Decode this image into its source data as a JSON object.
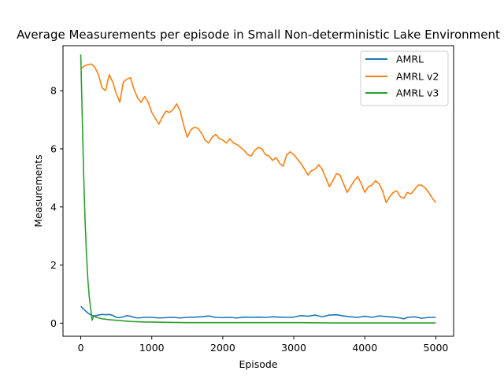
{
  "chart_data": {
    "type": "line",
    "title": "Average Measurements per episode in Small Non-deterministic Lake Environment",
    "xlabel": "Episode",
    "ylabel": "Measurements",
    "xlim": [
      -250,
      5250
    ],
    "ylim": [
      -0.45,
      9.55
    ],
    "xticks": [
      0,
      1000,
      2000,
      3000,
      4000,
      5000
    ],
    "xtick_labels": [
      "0",
      "1000",
      "2000",
      "3000",
      "4000",
      "5000"
    ],
    "yticks": [
      0,
      2,
      4,
      6,
      8
    ],
    "ytick_labels": [
      "0",
      "2",
      "4",
      "6",
      "8"
    ],
    "grid": false,
    "legend_position": "top-right",
    "series": [
      {
        "name": "AMRL",
        "color": "#1f77b4",
        "x": [
          0,
          50,
          100,
          150,
          200,
          250,
          300,
          350,
          400,
          450,
          500,
          550,
          600,
          650,
          700,
          750,
          800,
          900,
          1000,
          1100,
          1200,
          1300,
          1400,
          1500,
          1600,
          1700,
          1800,
          1900,
          2000,
          2100,
          2200,
          2300,
          2400,
          2500,
          2600,
          2700,
          2800,
          2900,
          3000,
          3100,
          3200,
          3300,
          3400,
          3500,
          3600,
          3700,
          3800,
          3900,
          4000,
          4100,
          4200,
          4300,
          4400,
          4500,
          4550,
          4600,
          4700,
          4800,
          4900,
          5000
        ],
        "y": [
          0.58,
          0.46,
          0.35,
          0.27,
          0.25,
          0.28,
          0.3,
          0.29,
          0.3,
          0.27,
          0.2,
          0.19,
          0.22,
          0.26,
          0.24,
          0.2,
          0.18,
          0.2,
          0.2,
          0.18,
          0.19,
          0.2,
          0.18,
          0.2,
          0.21,
          0.22,
          0.25,
          0.2,
          0.19,
          0.2,
          0.18,
          0.21,
          0.2,
          0.21,
          0.2,
          0.22,
          0.21,
          0.2,
          0.21,
          0.26,
          0.24,
          0.28,
          0.22,
          0.28,
          0.29,
          0.25,
          0.22,
          0.2,
          0.24,
          0.2,
          0.25,
          0.23,
          0.21,
          0.18,
          0.15,
          0.2,
          0.22,
          0.17,
          0.2,
          0.2
        ]
      },
      {
        "name": "AMRL v2",
        "color": "#ff7f0e",
        "x": [
          0,
          50,
          100,
          150,
          200,
          250,
          300,
          350,
          400,
          450,
          500,
          550,
          600,
          650,
          700,
          750,
          800,
          850,
          900,
          950,
          1000,
          1050,
          1100,
          1150,
          1200,
          1250,
          1300,
          1350,
          1400,
          1450,
          1500,
          1550,
          1600,
          1650,
          1700,
          1750,
          1800,
          1850,
          1900,
          1950,
          2000,
          2050,
          2100,
          2150,
          2200,
          2250,
          2300,
          2350,
          2400,
          2450,
          2500,
          2550,
          2600,
          2650,
          2700,
          2750,
          2800,
          2850,
          2900,
          2950,
          3000,
          3050,
          3100,
          3150,
          3200,
          3250,
          3300,
          3350,
          3400,
          3450,
          3500,
          3550,
          3600,
          3650,
          3700,
          3750,
          3800,
          3850,
          3900,
          3950,
          4000,
          4050,
          4100,
          4150,
          4200,
          4250,
          4300,
          4350,
          4400,
          4450,
          4500,
          4550,
          4600,
          4650,
          4700,
          4750,
          4800,
          4850,
          4900,
          4950,
          5000
        ],
        "y": [
          8.75,
          8.85,
          8.9,
          8.92,
          8.8,
          8.55,
          8.1,
          8.0,
          8.55,
          8.3,
          7.9,
          7.6,
          8.3,
          8.4,
          8.45,
          8.05,
          7.75,
          7.6,
          7.8,
          7.6,
          7.25,
          7.05,
          6.85,
          7.1,
          7.3,
          7.25,
          7.35,
          7.55,
          7.3,
          6.8,
          6.4,
          6.65,
          6.75,
          6.7,
          6.55,
          6.3,
          6.2,
          6.4,
          6.5,
          6.35,
          6.3,
          6.2,
          6.35,
          6.2,
          6.15,
          6.05,
          5.95,
          5.8,
          5.75,
          5.95,
          6.05,
          6.0,
          5.8,
          5.75,
          5.6,
          5.7,
          5.5,
          5.4,
          5.8,
          5.9,
          5.8,
          5.65,
          5.5,
          5.3,
          5.1,
          5.25,
          5.3,
          5.45,
          5.3,
          5.0,
          4.7,
          4.9,
          5.15,
          5.1,
          4.8,
          4.5,
          4.7,
          4.9,
          5.05,
          4.8,
          4.5,
          4.7,
          4.75,
          4.9,
          4.8,
          4.55,
          4.15,
          4.35,
          4.5,
          4.55,
          4.35,
          4.3,
          4.5,
          4.45,
          4.6,
          4.75,
          4.75,
          4.65,
          4.5,
          4.3,
          4.15
        ]
      },
      {
        "name": "AMRL v3",
        "color": "#2ca02c",
        "x": [
          0,
          20,
          40,
          60,
          80,
          100,
          120,
          140,
          160,
          180,
          200,
          250,
          300,
          400,
          500,
          600,
          700,
          800,
          900,
          1000,
          1200,
          1500,
          2000,
          2500,
          3000,
          3500,
          4000,
          4500,
          5000
        ],
        "y": [
          9.25,
          7.2,
          5.2,
          3.6,
          2.4,
          1.5,
          0.9,
          0.5,
          0.1,
          0.25,
          0.22,
          0.18,
          0.15,
          0.12,
          0.1,
          0.08,
          0.06,
          0.05,
          0.04,
          0.04,
          0.03,
          0.02,
          0.02,
          0.02,
          0.02,
          0.01,
          0.01,
          0.01,
          0.01
        ]
      }
    ]
  }
}
